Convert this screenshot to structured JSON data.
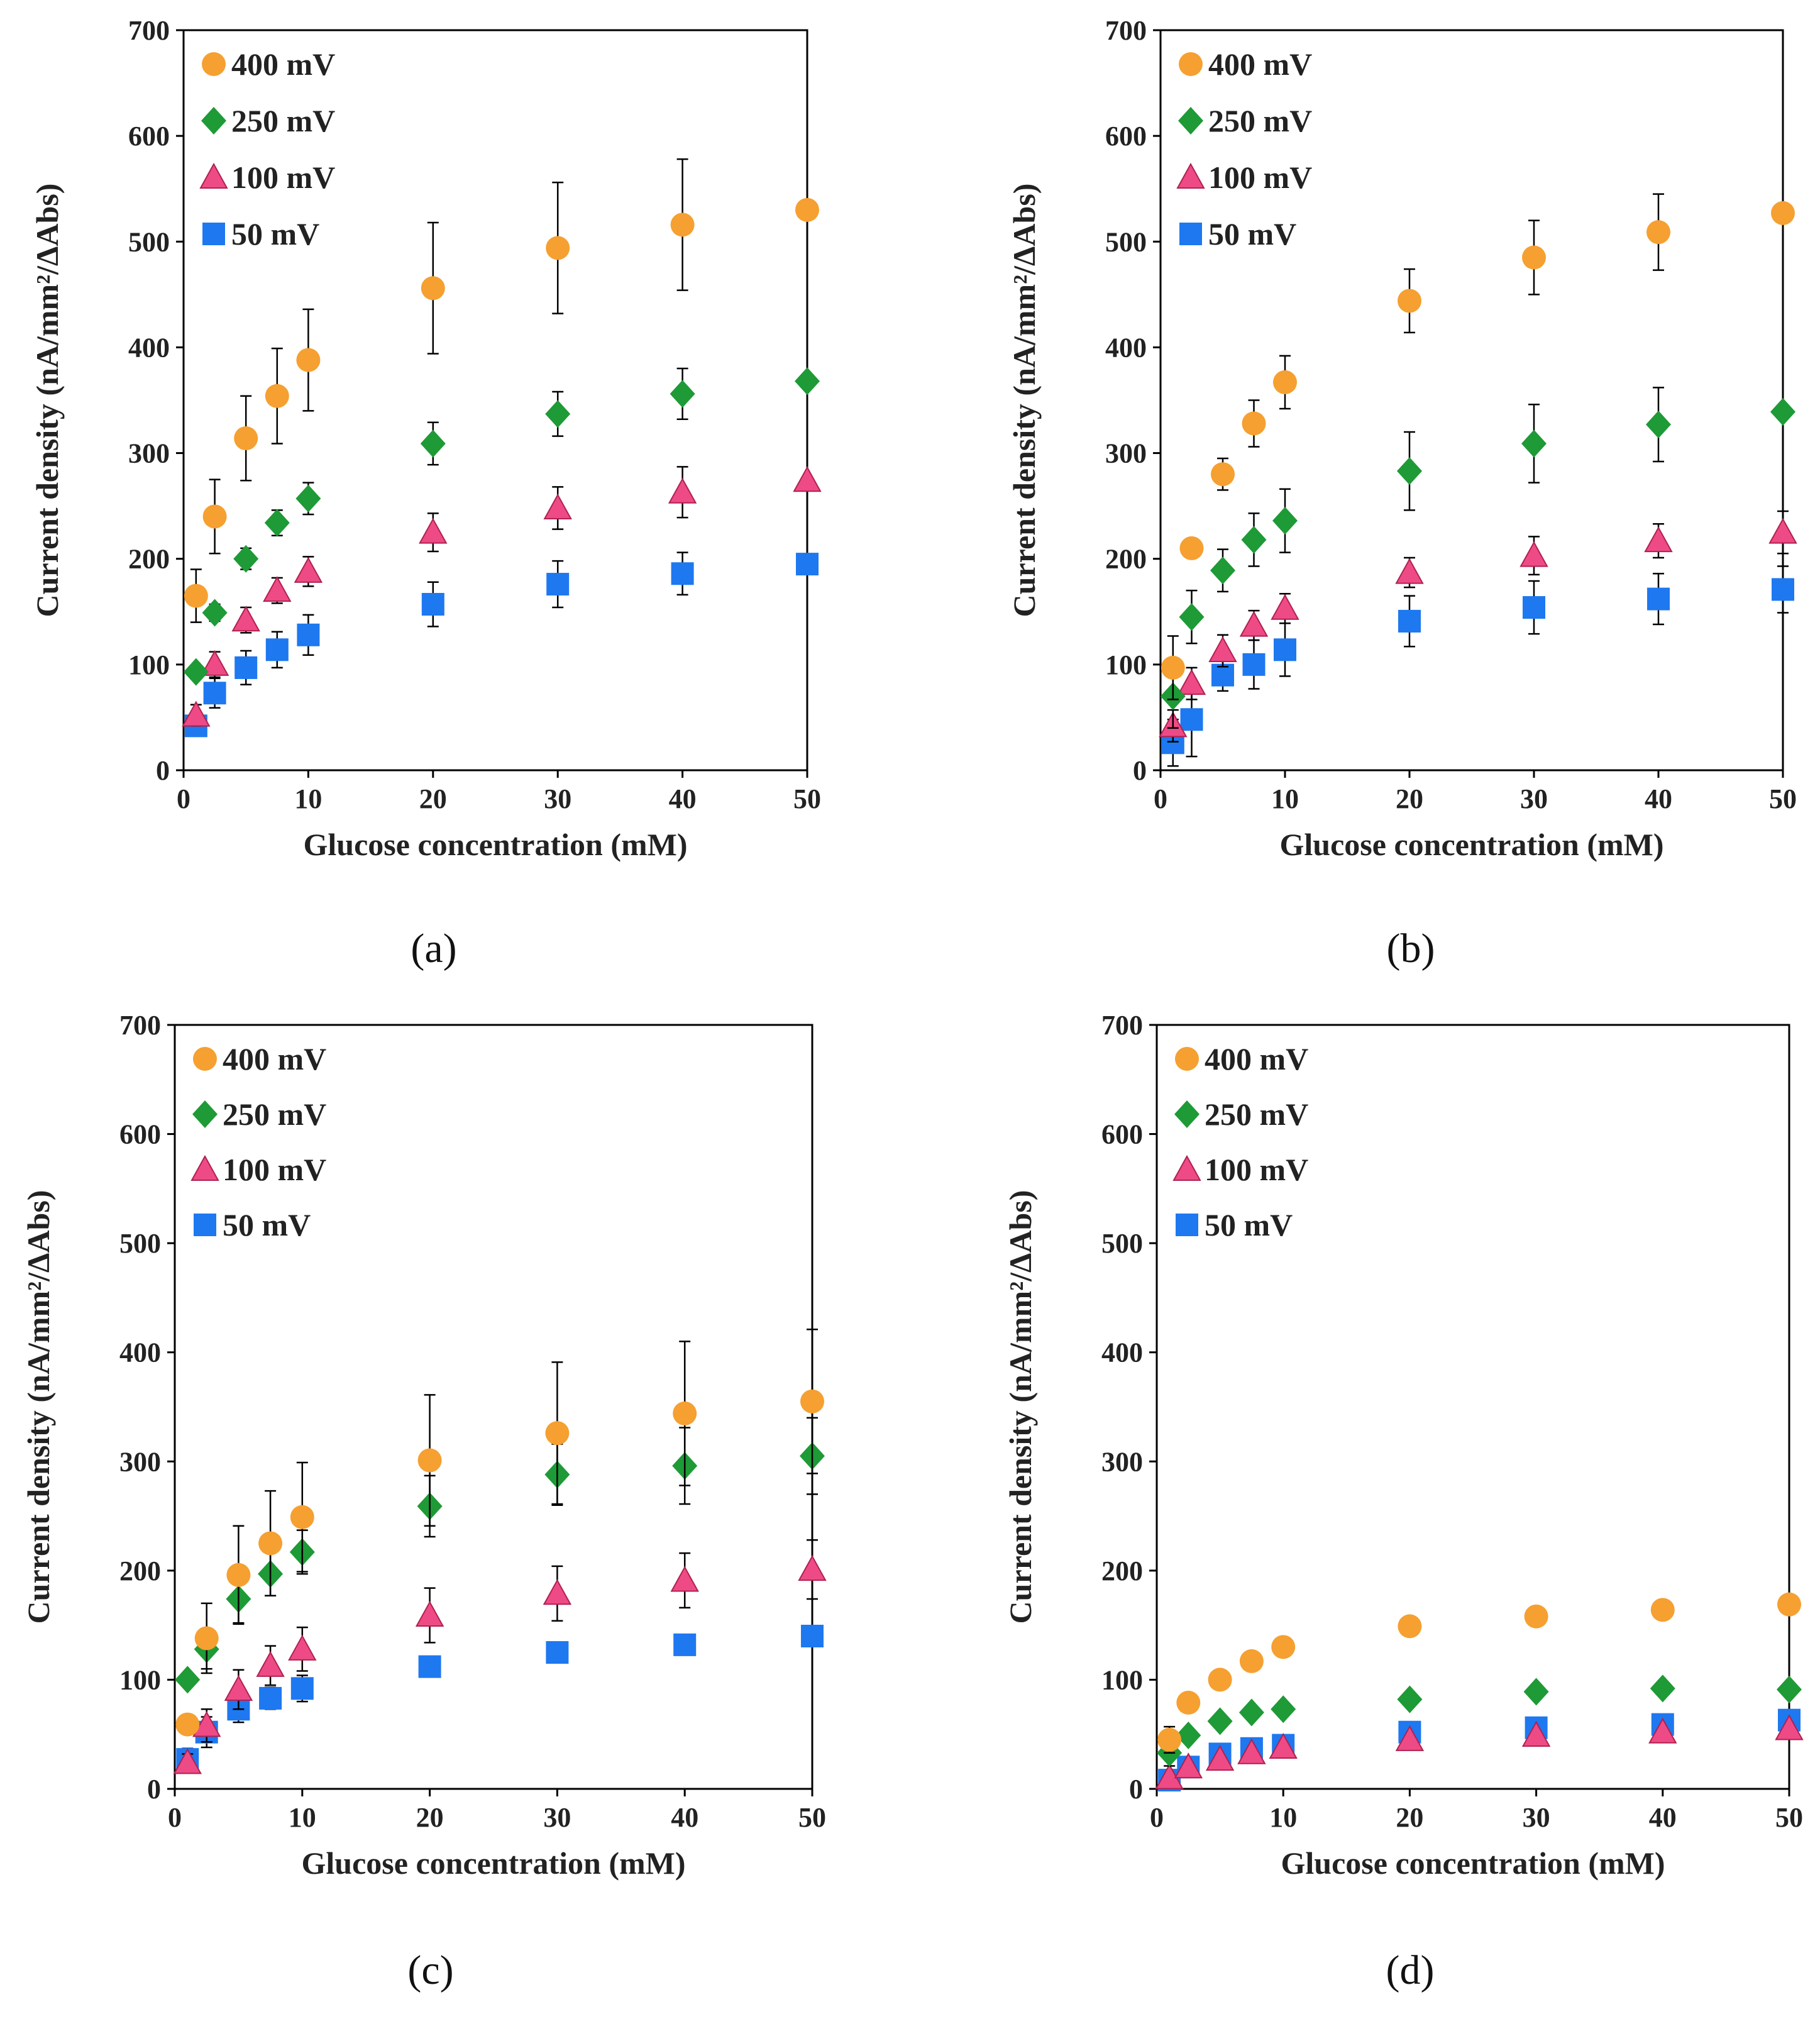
{
  "colors": {
    "400 mV": "#F5A031",
    "250 mV": "#1E9A36",
    "100 mV": "#EE4B86",
    "50 mV": "#1E78F0"
  },
  "chart_data": [
    {
      "type": "scatter",
      "panel_label": "(a)",
      "xlabel": "Glucose concentration (mM)",
      "ylabel": "Current density (nA/mm²/ΔAbs)",
      "xlim": [
        0,
        50
      ],
      "ylim": [
        0,
        700
      ],
      "xticks": [
        0,
        10,
        20,
        30,
        40,
        50
      ],
      "yticks": [
        0,
        100,
        200,
        300,
        400,
        500,
        600,
        700
      ],
      "legend_position": "top-left",
      "x": [
        1,
        2.5,
        5,
        7.5,
        10,
        20,
        30,
        40,
        50
      ],
      "series": [
        {
          "name": "400 mV",
          "marker": "circle",
          "values": [
            165,
            240,
            314,
            354,
            388,
            456,
            494,
            516,
            530
          ],
          "error": [
            25,
            35,
            40,
            45,
            48,
            62,
            62,
            62,
            0
          ]
        },
        {
          "name": "250 mV",
          "marker": "diamond",
          "values": [
            93,
            149,
            200,
            234,
            257,
            309,
            337,
            356,
            368
          ],
          "error": [
            0,
            8,
            10,
            12,
            15,
            20,
            21,
            24,
            0
          ]
        },
        {
          "name": "100 mV",
          "marker": "triangle",
          "values": [
            52,
            100,
            142,
            170,
            188,
            225,
            248,
            263,
            274
          ],
          "error": [
            10,
            12,
            12,
            12,
            14,
            18,
            20,
            24,
            0
          ]
        },
        {
          "name": "50 mV",
          "marker": "square",
          "values": [
            42,
            73,
            97,
            114,
            128,
            157,
            176,
            186,
            195
          ],
          "error": [
            8,
            14,
            16,
            17,
            19,
            21,
            22,
            20,
            0
          ]
        }
      ]
    },
    {
      "type": "scatter",
      "panel_label": "(b)",
      "xlabel": "Glucose concentration (mM)",
      "ylabel": "Current density (nA/mm²/ΔAbs)",
      "xlim": [
        0,
        50
      ],
      "ylim": [
        0,
        700
      ],
      "xticks": [
        0,
        10,
        20,
        30,
        40,
        50
      ],
      "yticks": [
        0,
        100,
        200,
        300,
        400,
        500,
        600,
        700
      ],
      "legend_position": "top-left",
      "x": [
        1,
        2.5,
        5,
        7.5,
        10,
        20,
        30,
        40,
        50
      ],
      "series": [
        {
          "name": "400 mV",
          "marker": "circle",
          "values": [
            97,
            210,
            280,
            328,
            367,
            444,
            485,
            509,
            527
          ],
          "error": [
            30,
            0,
            15,
            22,
            25,
            30,
            35,
            36,
            0
          ]
        },
        {
          "name": "250 mV",
          "marker": "diamond",
          "values": [
            70,
            145,
            189,
            218,
            236,
            283,
            309,
            327,
            339
          ],
          "error": [
            30,
            25,
            20,
            25,
            30,
            37,
            37,
            35,
            0
          ]
        },
        {
          "name": "100 mV",
          "marker": "triangle",
          "values": [
            42,
            82,
            113,
            137,
            153,
            187,
            203,
            217,
            225
          ],
          "error": [
            15,
            15,
            15,
            14,
            14,
            14,
            18,
            16,
            20
          ]
        },
        {
          "name": "50 mV",
          "marker": "square",
          "values": [
            26,
            48,
            90,
            100,
            114,
            141,
            154,
            162,
            171
          ],
          "error": [
            22,
            35,
            15,
            23,
            25,
            24,
            25,
            24,
            22
          ]
        }
      ]
    },
    {
      "type": "scatter",
      "panel_label": "(c)",
      "xlabel": "Glucose concentration (mM)",
      "ylabel": "Current density (nA/mm²/ΔAbs)",
      "xlim": [
        0,
        50
      ],
      "ylim": [
        0,
        700
      ],
      "xticks": [
        0,
        10,
        20,
        30,
        40,
        50
      ],
      "yticks": [
        0,
        100,
        200,
        300,
        400,
        500,
        600,
        700
      ],
      "legend_position": "top-left",
      "x": [
        1,
        2.5,
        5,
        7.5,
        10,
        20,
        30,
        40,
        50
      ],
      "series": [
        {
          "name": "400 mV",
          "marker": "circle",
          "values": [
            59,
            138,
            196,
            225,
            249,
            301,
            326,
            344,
            355
          ],
          "error": [
            0,
            32,
            45,
            48,
            50,
            60,
            65,
            66,
            66
          ]
        },
        {
          "name": "250 mV",
          "marker": "diamond",
          "values": [
            100,
            128,
            174,
            197,
            217,
            259,
            288,
            296,
            305
          ],
          "error": [
            0,
            18,
            22,
            20,
            20,
            28,
            28,
            35,
            35
          ]
        },
        {
          "name": "100 mV",
          "marker": "triangle",
          "values": [
            24,
            58,
            91,
            113,
            128,
            159,
            179,
            191,
            201
          ],
          "error": [
            8,
            15,
            18,
            18,
            20,
            25,
            25,
            25,
            27
          ]
        },
        {
          "name": "50 mV",
          "marker": "square",
          "values": [
            27,
            52,
            73,
            83,
            92,
            112,
            125,
            132,
            140
          ],
          "error": [
            10,
            14,
            12,
            10,
            12,
            0,
            0,
            0,
            0
          ]
        }
      ]
    },
    {
      "type": "scatter",
      "panel_label": "(d)",
      "xlabel": "Glucose concentration (mM)",
      "ylabel": "Current density (nA/mm²/ΔAbs)",
      "xlim": [
        0,
        50
      ],
      "ylim": [
        0,
        700
      ],
      "xticks": [
        0,
        10,
        20,
        30,
        40,
        50
      ],
      "yticks": [
        0,
        100,
        200,
        300,
        400,
        500,
        600,
        700
      ],
      "legend_position": "top-left",
      "x": [
        1,
        2.5,
        5,
        7.5,
        10,
        20,
        30,
        40,
        50
      ],
      "series": [
        {
          "name": "400 mV",
          "marker": "circle",
          "values": [
            45,
            79,
            100,
            117,
            130,
            149,
            158,
            164,
            169
          ],
          "error": [
            12,
            0,
            0,
            0,
            0,
            0,
            0,
            0,
            0
          ]
        },
        {
          "name": "250 mV",
          "marker": "diamond",
          "values": [
            33,
            49,
            62,
            70,
            73,
            82,
            89,
            92,
            91
          ],
          "error": [
            12,
            0,
            0,
            0,
            0,
            0,
            0,
            0,
            0
          ]
        },
        {
          "name": "100 mV",
          "marker": "triangle",
          "values": [
            10,
            20,
            27,
            33,
            38,
            45,
            49,
            52,
            55
          ],
          "error": [
            0,
            0,
            0,
            0,
            0,
            0,
            0,
            0,
            0
          ]
        },
        {
          "name": "50 mV",
          "marker": "square",
          "values": [
            8,
            20,
            32,
            37,
            40,
            52,
            56,
            59,
            63
          ],
          "error": [
            0,
            0,
            0,
            0,
            0,
            0,
            0,
            0,
            0
          ]
        }
      ]
    }
  ]
}
